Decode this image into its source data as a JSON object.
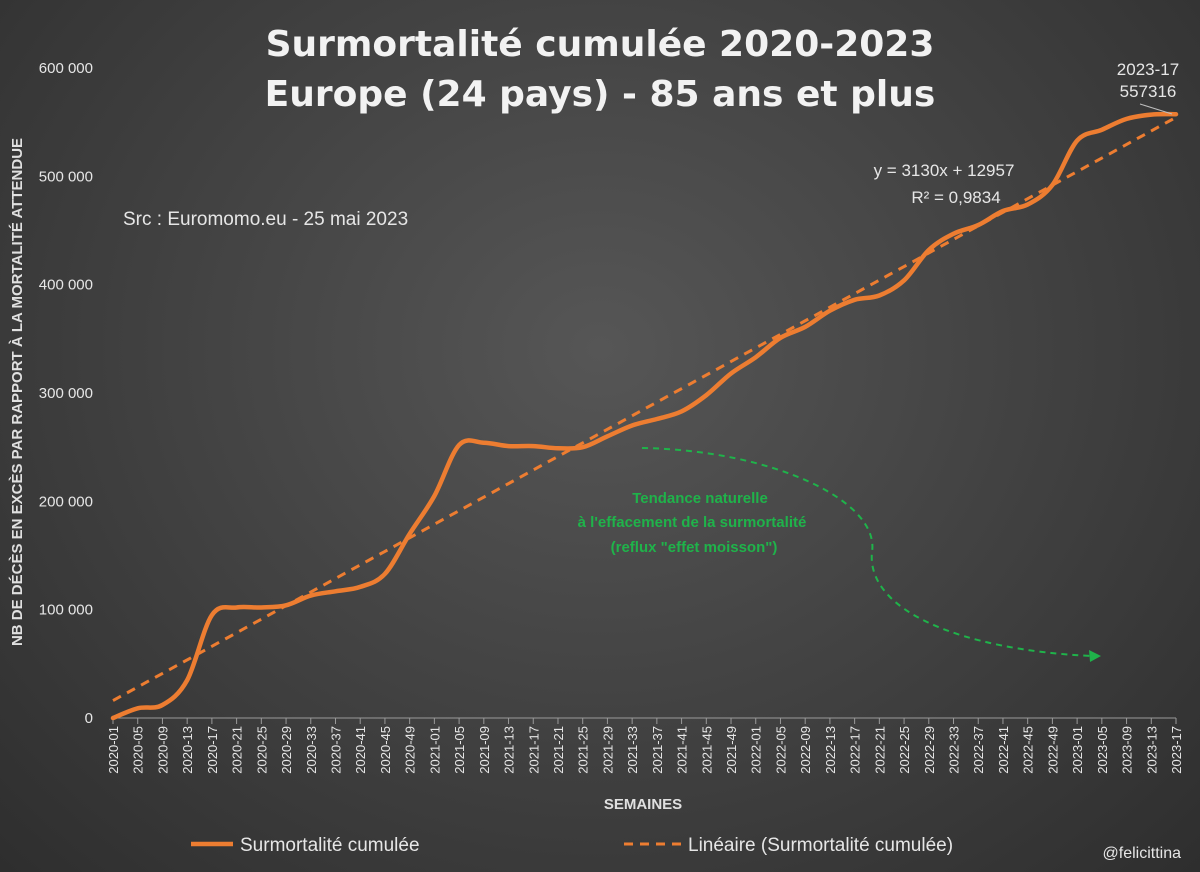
{
  "chart_data": {
    "type": "line",
    "title": [
      "Surmortalité cumulée 2020-2023",
      "Europe (24 pays) - 85 ans et plus"
    ],
    "xlabel": "SEMAINES",
    "ylabel": "NB DE DÉCÈS EN EXCÈS PAR RAPPORT À LA MORTALITÉ ATTENDUE",
    "ylim": [
      0,
      600000
    ],
    "yticks": [
      0,
      100000,
      200000,
      300000,
      400000,
      500000,
      600000
    ],
    "ytick_labels": [
      "0",
      "100 000",
      "200 000",
      "300 000",
      "400 000",
      "500 000",
      "600 000"
    ],
    "grid": false,
    "x": [
      "2020-01",
      "2020-05",
      "2020-09",
      "2020-13",
      "2020-17",
      "2020-21",
      "2020-25",
      "2020-29",
      "2020-33",
      "2020-37",
      "2020-41",
      "2020-45",
      "2020-49",
      "2021-01",
      "2021-05",
      "2021-09",
      "2021-13",
      "2021-17",
      "2021-21",
      "2021-25",
      "2021-29",
      "2021-33",
      "2021-37",
      "2021-41",
      "2021-45",
      "2021-49",
      "2022-01",
      "2022-05",
      "2022-09",
      "2022-13",
      "2022-17",
      "2022-21",
      "2022-25",
      "2022-29",
      "2022-33",
      "2022-37",
      "2022-41",
      "2022-45",
      "2022-49",
      "2023-01",
      "2023-05",
      "2023-09",
      "2023-13",
      "2023-17"
    ],
    "series": [
      {
        "name": "Surmortalité cumulée",
        "color": "#ed7d31",
        "values": [
          0,
          9000,
          12000,
          35000,
          95000,
          102000,
          102000,
          104000,
          113000,
          117000,
          121000,
          133000,
          170000,
          205000,
          252000,
          254000,
          251000,
          251000,
          249000,
          250000,
          260000,
          270000,
          276000,
          283000,
          298000,
          318000,
          333000,
          351000,
          361000,
          376000,
          386000,
          390000,
          404000,
          432000,
          447000,
          455000,
          468000,
          474000,
          492000,
          533000,
          543000,
          553000,
          557000,
          557316
        ]
      },
      {
        "name": "Linéaire (Surmortalité cumulée)",
        "color": "#ed7d31",
        "style": "dashed",
        "values": [
          16087,
          28607,
          41127,
          53647,
          66167,
          78687,
          91207,
          103727,
          116247,
          128767,
          141287,
          153807,
          166327,
          178847,
          191367,
          203887,
          216407,
          228927,
          241447,
          253967,
          266487,
          279007,
          291527,
          304047,
          316567,
          329087,
          341607,
          354127,
          366647,
          379167,
          391687,
          404207,
          416727,
          429247,
          441767,
          454287,
          466807,
          479327,
          491847,
          504367,
          516887,
          529407,
          541927,
          554447
        ]
      }
    ],
    "annotations": {
      "last_point_label": [
        "2023-17",
        "557316"
      ],
      "trend_equation": "y = 3130x + 12957",
      "r_squared": "R² = 0,9834",
      "source": "Src : Euromomo.eu  - 25 mai 2023",
      "green_note": [
        "Tendance naturelle",
        "à l'effacement de la surmortalité",
        "(reflux \"effet moisson\")"
      ],
      "green_color": "#1fb34a"
    },
    "legend_position": "bottom",
    "legend": [
      "Surmortalité cumulée",
      "Linéaire (Surmortalité cumulée)"
    ]
  },
  "credit": "@felicittina"
}
